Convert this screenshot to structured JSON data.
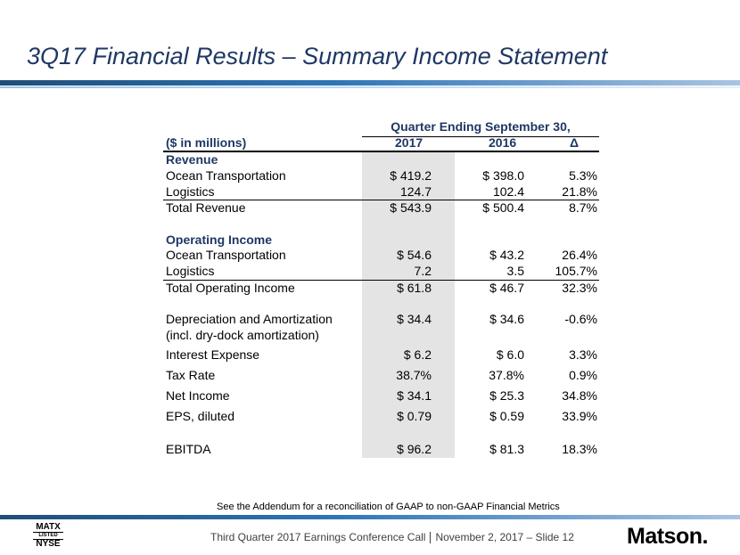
{
  "title": "3Q17 Financial Results – Summary Income Statement",
  "table": {
    "group_header": "Quarter Ending September 30,",
    "units_header": "($ in millions)",
    "col_2017": "2017",
    "col_2016": "2016",
    "col_delta": "Δ",
    "rows": [
      {
        "label": "Revenue"
      },
      {
        "label": "Ocean Transportation",
        "v2017": "$ 419.2",
        "v2016": "$ 398.0",
        "delta": "5.3%"
      },
      {
        "label": "Logistics",
        "v2017": "124.7",
        "v2016": "102.4",
        "delta": "21.8%"
      },
      {
        "label": "Total Revenue",
        "v2017": "$ 543.9",
        "v2016": "$ 500.4",
        "delta": "8.7%"
      },
      {
        "label": "Operating Income"
      },
      {
        "label": "Ocean Transportation",
        "v2017": "$ 54.6",
        "v2016": "$ 43.2",
        "delta": "26.4%"
      },
      {
        "label": "Logistics",
        "v2017": "7.2",
        "v2016": "3.5",
        "delta": "105.7%"
      },
      {
        "label": "Total Operating Income",
        "v2017": "$ 61.8",
        "v2016": "$ 46.7",
        "delta": "32.3%"
      },
      {
        "label": "Depreciation and Amortization",
        "v2017": "$ 34.4",
        "v2016": "$ 34.6",
        "delta": "-0.6%"
      },
      {
        "label": "(incl. dry-dock amortization)"
      },
      {
        "label": "Interest Expense",
        "v2017": "$ 6.2",
        "v2016": "$ 6.0",
        "delta": "3.3%"
      },
      {
        "label": "Tax Rate",
        "v2017": "38.7%",
        "v2016": "37.8%",
        "delta": "0.9%"
      },
      {
        "label": "Net Income",
        "v2017": "$ 34.1",
        "v2016": "$ 25.3",
        "delta": "34.8%"
      },
      {
        "label": "EPS, diluted",
        "v2017": "$ 0.79",
        "v2016": "$ 0.59",
        "delta": "33.9%"
      },
      {
        "label": "EBITDA",
        "v2017": "$ 96.2",
        "v2016": "$ 81.3",
        "delta": "18.3%"
      }
    ]
  },
  "footnote": "See the Addendum for a reconciliation of GAAP to non-GAAP Financial Metrics",
  "footer": {
    "left": "Third Quarter 2017 Earnings Conference Call",
    "right": "November 2, 2017 – Slide 12"
  },
  "logos": {
    "ticker": "MATX",
    "listed": "LISTED",
    "exchange": "NYSE",
    "brand": "Matson."
  },
  "colors": {
    "title": "#1f3864",
    "accent": "#2e75b6",
    "shade": "#e4e4e4"
  }
}
